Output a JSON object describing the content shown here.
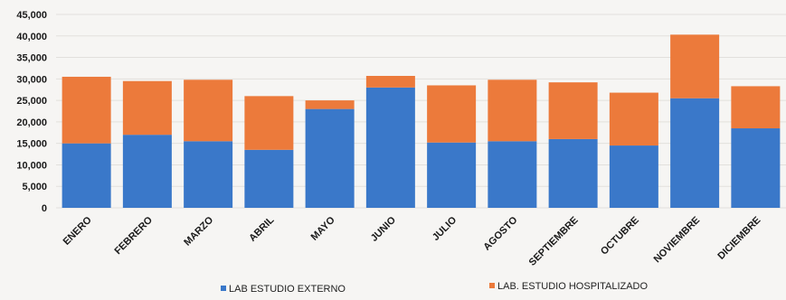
{
  "chart_data": {
    "type": "bar",
    "stacked": true,
    "categories": [
      "ENERO",
      "FEBRERO",
      "MARZO",
      "ABRIL",
      "MAYO",
      "JUNIO",
      "JULIO",
      "AGOSTO",
      "SEPTIEMBRE",
      "OCTUBRE",
      "NOVIEMBRE",
      "DICIEMBRE"
    ],
    "series": [
      {
        "name": "LAB ESTUDIO EXTERNO",
        "color": "#3a78c9",
        "values": [
          15000,
          17000,
          15500,
          13500,
          23000,
          28000,
          15200,
          15500,
          16000,
          14500,
          25500,
          18500
        ]
      },
      {
        "name": "LAB. ESTUDIO HOSPITALIZADO",
        "color": "#ec7a3b",
        "values": [
          15500,
          12500,
          14300,
          12500,
          2000,
          2700,
          13300,
          14300,
          13200,
          12300,
          14800,
          9800
        ]
      }
    ],
    "yticks": [
      "45,000",
      "40,000",
      "35,000",
      "30,000",
      "25,000",
      "20,000",
      "15,000",
      "10,000",
      "5,000",
      "0"
    ],
    "ylim": [
      0,
      45000
    ],
    "grid": true,
    "legend_position": "bottom"
  }
}
